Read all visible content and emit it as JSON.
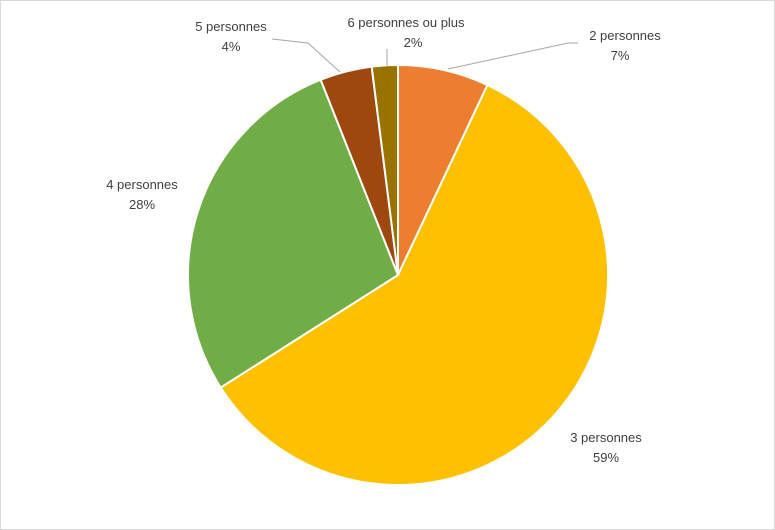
{
  "chart_data": {
    "type": "pie",
    "title": "",
    "legend": "none",
    "slices": [
      {
        "label": "2 personnes",
        "value": 7,
        "display": "7%",
        "color": "#ED7D31"
      },
      {
        "label": "3 personnes",
        "value": 59,
        "display": "59%",
        "color": "#FFC000"
      },
      {
        "label": "4 personnes",
        "value": 28,
        "display": "28%",
        "color": "#70AD47"
      },
      {
        "label": "5 personnes",
        "value": 4,
        "display": "4%",
        "color": "#9E480E"
      },
      {
        "label": "6 personnes ou plus",
        "value": 2,
        "display": "2%",
        "color": "#997300"
      }
    ]
  }
}
